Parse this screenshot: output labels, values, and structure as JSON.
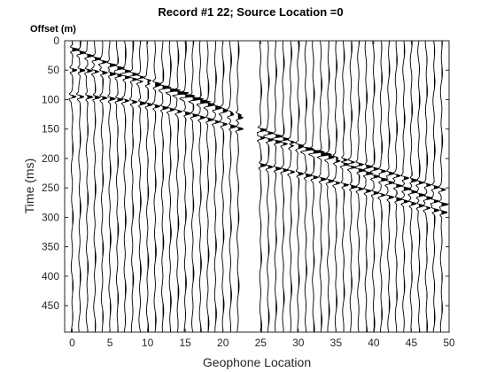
{
  "chart_data": {
    "type": "seismic-wiggle",
    "title": "Record #1  22; Source Location =0",
    "corner_label": "Offset (m)",
    "xlabel": "Geophone Location",
    "ylabel": "Time (ms)",
    "xlim": [
      -1,
      50
    ],
    "ylim": [
      0,
      495
    ],
    "y_reversed": true,
    "xticks": [
      0,
      5,
      10,
      15,
      20,
      25,
      30,
      35,
      40,
      45,
      50
    ],
    "yticks": [
      0,
      50,
      100,
      150,
      200,
      250,
      300,
      350,
      400,
      450
    ],
    "grid": false,
    "trace_count": 50,
    "missing_traces": [
      23,
      24
    ],
    "direct_wave": {
      "velocity_m_per_ms": 0.19,
      "intercept_ms": 15,
      "range": [
        0,
        22
      ]
    },
    "refracted_wave": {
      "velocity_m_per_ms": 0.19,
      "intercept_ms": 20,
      "range": [
        25,
        49
      ]
    },
    "reflections": [
      {
        "t0_ms": 50,
        "velocity_m_per_ms": 0.19,
        "range": [
          0,
          22
        ]
      },
      {
        "t0_ms": 95,
        "velocity_m_per_ms": 0.19,
        "range": [
          0,
          22
        ]
      },
      {
        "t0_ms": 120,
        "velocity_m_per_ms": 0.22,
        "range": [
          25,
          49
        ]
      },
      {
        "t0_ms": 175,
        "velocity_m_per_ms": 0.21,
        "range": [
          25,
          49
        ]
      }
    ],
    "style": {
      "trace_color": "#000000",
      "fill_color": "#000000",
      "axis_color": "#262626"
    }
  }
}
